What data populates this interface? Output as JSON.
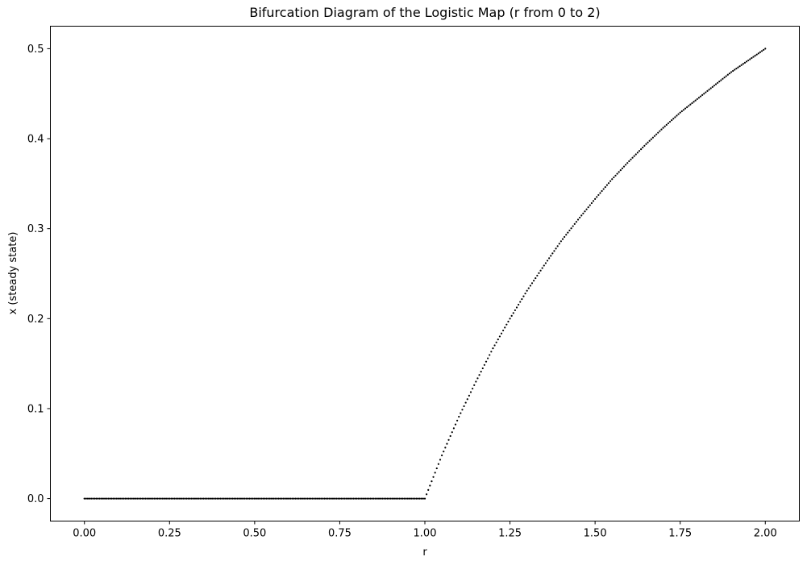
{
  "chart_data": {
    "type": "scatter",
    "title": "Bifurcation Diagram of the Logistic Map (r from 0 to 2)",
    "xlabel": "r",
    "ylabel": "x (steady state)",
    "xlim": [
      -0.1,
      2.1
    ],
    "ylim": [
      -0.025,
      0.525
    ],
    "xticks": [
      0.0,
      0.25,
      0.5,
      0.75,
      1.0,
      1.25,
      1.5,
      1.75,
      2.0
    ],
    "xtick_labels": [
      "0.00",
      "0.25",
      "0.50",
      "0.75",
      "1.00",
      "1.25",
      "1.50",
      "1.75",
      "2.00"
    ],
    "yticks": [
      0.0,
      0.1,
      0.2,
      0.3,
      0.4,
      0.5
    ],
    "ytick_labels": [
      "0.0",
      "0.1",
      "0.2",
      "0.3",
      "0.4",
      "0.5"
    ],
    "grid": false,
    "marker_color": "#000000",
    "series": [
      {
        "x": [
          0.0,
          0.1,
          0.2,
          0.3,
          0.4,
          0.5,
          0.6,
          0.7,
          0.8,
          0.9,
          1.0,
          1.05,
          1.1,
          1.15,
          1.2,
          1.25,
          1.3,
          1.35,
          1.4,
          1.45,
          1.5,
          1.55,
          1.6,
          1.65,
          1.7,
          1.75,
          1.8,
          1.85,
          1.9,
          1.95,
          2.0
        ],
        "y": [
          0.0,
          0.0,
          0.0,
          0.0,
          0.0,
          0.0,
          0.0,
          0.0,
          0.0,
          0.0,
          0.0,
          0.048,
          0.091,
          0.13,
          0.167,
          0.2,
          0.231,
          0.259,
          0.286,
          0.31,
          0.333,
          0.355,
          0.375,
          0.394,
          0.412,
          0.429,
          0.444,
          0.459,
          0.474,
          0.487,
          0.5
        ]
      }
    ]
  }
}
